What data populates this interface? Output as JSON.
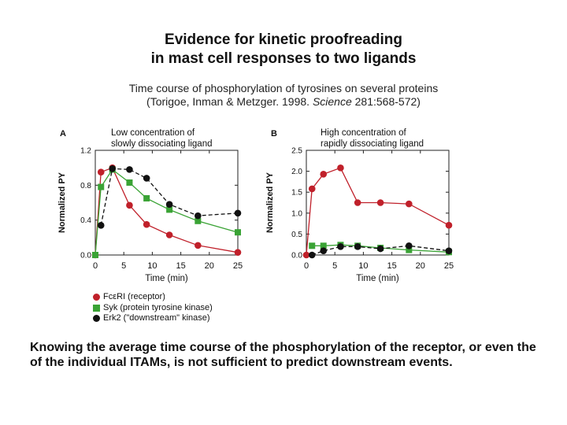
{
  "slide": {
    "title_line1": "Evidence for kinetic  proofreading",
    "title_line2": "in mast cell responses to two ligands",
    "subtitle_line1": "Time course of phosphorylation of tyrosines on several proteins",
    "subtitle_citation_pre": "(Torigoe, Inman & Metzger. 1998. ",
    "subtitle_citation_journal": "Science",
    "subtitle_citation_post": " 281:568-572)",
    "conclusion": "Knowing the average time course of the phosphorylation of the receptor, or even the of the individual ITAMs, is not sufficient to predict downstream events."
  },
  "colors": {
    "receptor": "#c0202a",
    "syk": "#3aa335",
    "erk2": "#111111",
    "axis": "#222222"
  },
  "legend": [
    {
      "label": "FcεRI (receptor)",
      "color": "#c0202a",
      "marker": "circle"
    },
    {
      "label": "Syk (protein tyrosine kinase)",
      "color": "#3aa335",
      "marker": "square"
    },
    {
      "label": "Erk2 (\"downstream\" kinase)",
      "color": "#111111",
      "marker": "circle"
    }
  ],
  "chart_data": [
    {
      "type": "line",
      "panel_label": "A",
      "title": "Low concentration of slowly dissociating ligand",
      "title_lines": [
        "Low concentration of",
        "slowly dissociating ligand"
      ],
      "xlabel": "Time (min)",
      "ylabel": "Normalized PY",
      "xlim": [
        0,
        25
      ],
      "ylim": [
        0,
        1.2
      ],
      "xticks": [
        0,
        5,
        10,
        15,
        20,
        25
      ],
      "yticks": [
        0.0,
        0.4,
        0.8,
        1.2
      ],
      "ytick_labels": [
        "0.0",
        "0.4",
        "0.8",
        "1.2"
      ],
      "series": [
        {
          "name": "FcεRI (receptor)",
          "color": "#c0202a",
          "marker": "circle",
          "dash": "solid",
          "x": [
            0,
            1,
            3,
            6,
            9,
            13,
            18,
            25
          ],
          "y": [
            0.0,
            0.95,
            1.0,
            0.57,
            0.35,
            0.23,
            0.11,
            0.03
          ]
        },
        {
          "name": "Syk (protein tyrosine kinase)",
          "color": "#3aa335",
          "marker": "square",
          "dash": "solid",
          "x": [
            0,
            1,
            3,
            6,
            9,
            13,
            18,
            25
          ],
          "y": [
            0.0,
            0.78,
            0.98,
            0.83,
            0.65,
            0.52,
            0.39,
            0.26
          ]
        },
        {
          "name": "Erk2 (\"downstream\" kinase)",
          "color": "#111111",
          "marker": "circle",
          "dash": "dashed",
          "x": [
            1,
            3,
            6,
            9,
            13,
            18,
            25
          ],
          "y": [
            0.34,
            0.99,
            0.98,
            0.88,
            0.58,
            0.45,
            0.48
          ]
        }
      ]
    },
    {
      "type": "line",
      "panel_label": "B",
      "title": "High concentration of rapidly dissociating ligand",
      "title_lines": [
        "High concentration of",
        "rapidly dissociating ligand"
      ],
      "xlabel": "Time (min)",
      "ylabel": "Normalized PY",
      "xlim": [
        0,
        25
      ],
      "ylim": [
        0,
        2.5
      ],
      "xticks": [
        0,
        5,
        10,
        15,
        20,
        25
      ],
      "yticks": [
        0.0,
        0.5,
        1.0,
        1.5,
        2.0,
        2.5
      ],
      "ytick_labels": [
        "0.0",
        "0.5",
        "1.0",
        "1.5",
        "2.0",
        "2.5"
      ],
      "series": [
        {
          "name": "FcεRI (receptor)",
          "color": "#c0202a",
          "marker": "circle",
          "dash": "solid",
          "x": [
            0,
            1,
            3,
            6,
            9,
            13,
            18,
            25
          ],
          "y": [
            0.0,
            1.58,
            1.93,
            2.08,
            1.25,
            1.25,
            1.22,
            0.71
          ]
        },
        {
          "name": "Syk (protein tyrosine kinase)",
          "color": "#3aa335",
          "marker": "square",
          "dash": "solid",
          "x": [
            1,
            3,
            6,
            9,
            13,
            18,
            25
          ],
          "y": [
            0.22,
            0.22,
            0.24,
            0.22,
            0.17,
            0.12,
            0.07
          ]
        },
        {
          "name": "Erk2 (\"downstream\" kinase)",
          "color": "#111111",
          "marker": "circle",
          "dash": "dashed",
          "x": [
            1,
            3,
            6,
            9,
            13,
            18,
            25
          ],
          "y": [
            0.0,
            0.1,
            0.2,
            0.2,
            0.15,
            0.22,
            0.1
          ]
        }
      ]
    }
  ]
}
